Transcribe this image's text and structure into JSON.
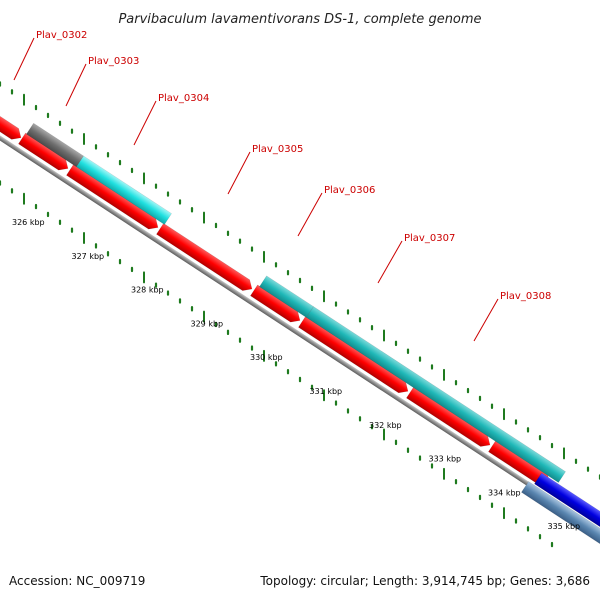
{
  "title": "Parvibaculum lavamentivorans DS-1, complete genome",
  "footer": {
    "accession": "Accession: NC_009719",
    "summary": "Topology: circular; Length: 3,914,745 bp; Genes: 3,686"
  },
  "genes": [
    {
      "label": "Plav_0302",
      "color": "#d9d9d9"
    },
    {
      "label": "Plav_0303",
      "color": "#707070"
    },
    {
      "label": "Plav_0304",
      "color": "#22e0e0"
    },
    {
      "label": "Plav_0305",
      "color": "#ff0000"
    },
    {
      "label": "Plav_0306",
      "color": "#20b8b8"
    },
    {
      "label": "Plav_0307",
      "color": "#20b8b8"
    },
    {
      "label": "Plav_0308",
      "color": "#20b8b8"
    }
  ],
  "kbp_ticks": [
    "326 kbp",
    "327 kbp",
    "328 kbp",
    "329 kbp",
    "330 kbp",
    "331 kbp",
    "332 kbp",
    "333 kbp",
    "334 kbp",
    "335 kbp"
  ],
  "colors": {
    "cds": "#ff0000",
    "backbone": "#8c8c8c",
    "tick": "#1e7a1e",
    "label": "#cc0000",
    "dark_blue_feature": "#0000e0",
    "steel_feature": "#5a86b0"
  }
}
